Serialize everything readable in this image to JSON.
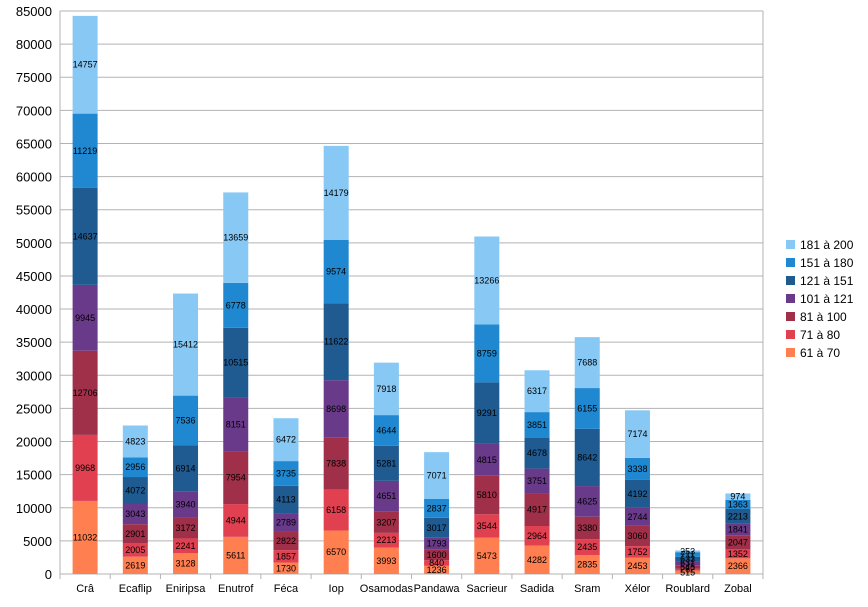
{
  "chart_data": {
    "type": "bar",
    "stacked": true,
    "title": "",
    "xlabel": "",
    "ylabel": "",
    "ylim": [
      0,
      85000
    ],
    "ytick_step": 5000,
    "grid": true,
    "legend_position": "right",
    "categories": [
      "Crâ",
      "Ecaflip",
      "Eniripsa",
      "Enutrof",
      "Féca",
      "Iop",
      "Osamodas",
      "Pandawa",
      "Sacrieur",
      "Sadida",
      "Sram",
      "Xélor",
      "Roublard",
      "Zobal"
    ],
    "series": [
      {
        "name": "61 à 70",
        "color": "#ff7f50",
        "values": [
          11032,
          2619,
          3128,
          5611,
          1730,
          6570,
          3993,
          1236,
          5473,
          4282,
          2835,
          2453,
          515,
          2366
        ]
      },
      {
        "name": "71 à 80",
        "color": "#e04050",
        "values": [
          9968,
          2005,
          2241,
          4944,
          1857,
          6158,
          2213,
          840,
          3544,
          2964,
          2435,
          1752,
          262,
          1352
        ]
      },
      {
        "name": "81 à 100",
        "color": "#a0304a",
        "values": [
          12706,
          2901,
          3172,
          7954,
          2822,
          7838,
          3207,
          1600,
          5810,
          4917,
          3380,
          3060,
          545,
          2047
        ]
      },
      {
        "name": "101 à 121",
        "color": "#6a3a8a",
        "values": [
          9945,
          3043,
          3940,
          8151,
          2789,
          8698,
          4651,
          1793,
          4815,
          3751,
          4625,
          2744,
          631,
          1841
        ]
      },
      {
        "name": "121 à 151",
        "color": "#1f5a90",
        "values": [
          14637,
          4072,
          6914,
          10515,
          4113,
          11622,
          5281,
          3017,
          9291,
          4678,
          8642,
          4192,
          633,
          2213
        ]
      },
      {
        "name": "151 à 180",
        "color": "#1f88d0",
        "values": [
          11219,
          2956,
          7536,
          6778,
          3735,
          9574,
          4644,
          2837,
          8759,
          3851,
          6155,
          3338,
          711,
          1363
        ]
      },
      {
        "name": "181 à 200",
        "color": "#87c8f5",
        "values": [
          14757,
          4823,
          15412,
          13659,
          6472,
          14179,
          7918,
          7071,
          13266,
          6317,
          7688,
          7174,
          253,
          974
        ]
      }
    ]
  }
}
